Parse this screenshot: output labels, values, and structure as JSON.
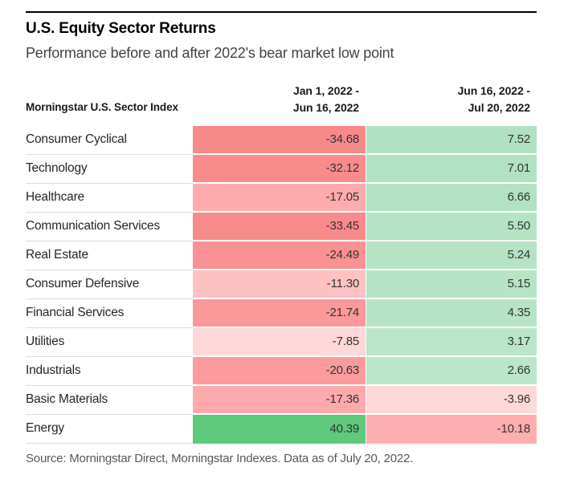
{
  "header": {
    "title": "U.S. Equity Sector Returns",
    "subtitle": "Performance before and after 2022's bear market low point"
  },
  "table": {
    "index_column_header": "Morningstar U.S. Sector Index",
    "period1_header_line1": "Jan 1, 2022 -",
    "period1_header_line2": "Jun 16, 2022",
    "period2_header_line1": "Jun 16, 2022 -",
    "period2_header_line2": "Jul 20, 2022",
    "rows": [
      {
        "sector": "Consumer Cyclical",
        "period1": "-34.68",
        "period2": "7.52",
        "period1_color": "#f8898b",
        "period2_color": "#b0e1c0"
      },
      {
        "sector": "Technology",
        "period1": "-32.12",
        "period2": "7.01",
        "period1_color": "#f98b8d",
        "period2_color": "#b1e2c1"
      },
      {
        "sector": "Healthcare",
        "period1": "-17.05",
        "period2": "6.66",
        "period1_color": "#fdabad",
        "period2_color": "#b2e2c2"
      },
      {
        "sector": "Communication Services",
        "period1": "-33.45",
        "period2": "5.50",
        "period1_color": "#f98a8c",
        "period2_color": "#b5e3c4"
      },
      {
        "sector": "Real Estate",
        "period1": "-24.49",
        "period2": "5.24",
        "period1_color": "#fa9193",
        "period2_color": "#b5e3c4"
      },
      {
        "sector": "Consumer Defensive",
        "period1": "-11.30",
        "period2": "5.15",
        "period1_color": "#fec1c2",
        "period2_color": "#b6e4c5"
      },
      {
        "sector": "Financial Services",
        "period1": "-21.74",
        "period2": "4.35",
        "period1_color": "#fb989a",
        "period2_color": "#b8e4c6"
      },
      {
        "sector": "Utilities",
        "period1": "-7.85",
        "period2": "3.17",
        "period1_color": "#fed7d8",
        "period2_color": "#bae5c8"
      },
      {
        "sector": "Industrials",
        "period1": "-20.63",
        "period2": "2.66",
        "period1_color": "#fb9b9d",
        "period2_color": "#bbe6c9"
      },
      {
        "sector": "Basic Materials",
        "period1": "-17.36",
        "period2": "-3.96",
        "period1_color": "#fdaaac",
        "period2_color": "#fdd9da"
      },
      {
        "sector": "Energy",
        "period1": "40.39",
        "period2": "-10.18",
        "period1_color": "#5fc97e",
        "period2_color": "#feaeb1"
      }
    ]
  },
  "footer": {
    "source": "Source: Morningstar Direct, Morningstar Indexes. Data as of July 20, 2022."
  },
  "colors": {
    "strong_negative": "#f8898b",
    "strong_positive": "#5fc97e",
    "mild_positive": "#b2e2c2",
    "rule": "#000000",
    "row_divider": "#dcdcdc"
  },
  "chart_data": {
    "type": "heatmap",
    "title": "U.S. Equity Sector Returns",
    "subtitle": "Performance before and after 2022's bear market low point",
    "categories": [
      "Consumer Cyclical",
      "Technology",
      "Healthcare",
      "Communication Services",
      "Real Estate",
      "Consumer Defensive",
      "Financial Services",
      "Utilities",
      "Industrials",
      "Basic Materials",
      "Energy"
    ],
    "series": [
      {
        "name": "Jan 1, 2022 - Jun 16, 2022",
        "values": [
          -34.68,
          -32.12,
          -17.05,
          -33.45,
          -24.49,
          -11.3,
          -21.74,
          -7.85,
          -20.63,
          -17.36,
          40.39
        ]
      },
      {
        "name": "Jun 16, 2022 - Jul 20, 2022",
        "values": [
          7.52,
          7.01,
          6.66,
          5.5,
          5.24,
          5.15,
          4.35,
          3.17,
          2.66,
          -3.96,
          -10.18
        ]
      }
    ],
    "value_unit": "percent return",
    "color_scale": {
      "negative": "#f8898b",
      "positive": "#5fc97e",
      "neutral": "#ffffff"
    },
    "source": "Source: Morningstar Direct, Morningstar Indexes. Data as of July 20, 2022."
  }
}
